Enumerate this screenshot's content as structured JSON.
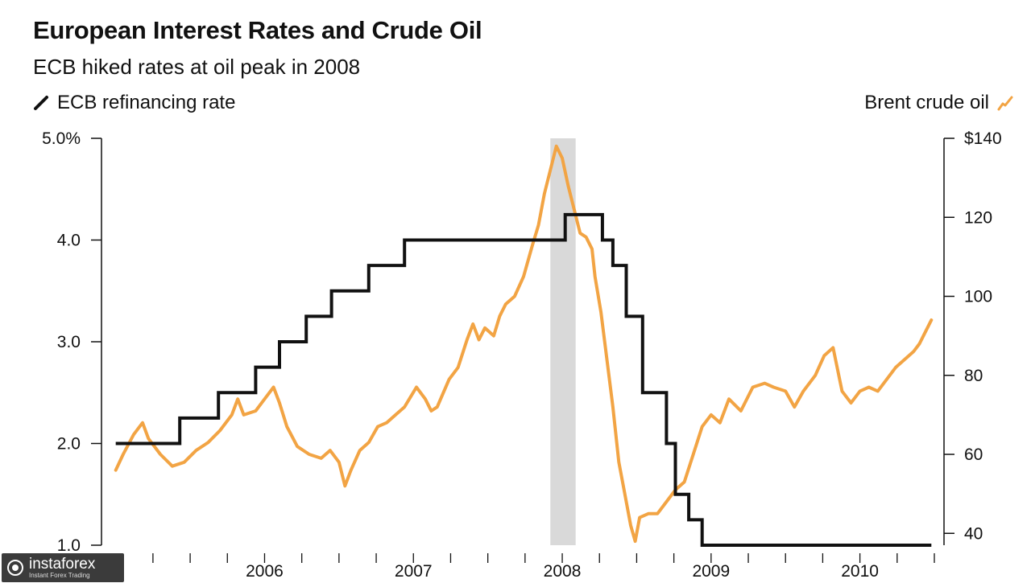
{
  "chart_data": {
    "type": "line",
    "title": "European Interest Rates and Crude Oil",
    "subtitle": "ECB hiked rates at oil peak in 2008",
    "legend": {
      "left_label": "ECB refinancing rate",
      "right_label": "Brent crude oil"
    },
    "colors": {
      "ecb": "#111111",
      "brent": "#f2a444",
      "shade": "#d9d9d9"
    },
    "left_axis": {
      "ticks": [
        "5.0%",
        "4.0",
        "3.0",
        "2.0",
        "1.0"
      ],
      "tick_values": [
        5.0,
        4.0,
        3.0,
        2.0,
        1.0
      ],
      "ylim": [
        1.0,
        5.0
      ]
    },
    "right_axis": {
      "ticks": [
        "$140",
        "120",
        "100",
        "80",
        "60",
        "40"
      ],
      "tick_values": [
        140,
        120,
        100,
        80,
        60,
        40
      ],
      "ylim": [
        37,
        140
      ]
    },
    "x_axis": {
      "year_labels": [
        "2006",
        "2007",
        "2008",
        "2009",
        "2010"
      ],
      "year_values": [
        2006,
        2007,
        2008,
        2009,
        2010
      ],
      "xlim": [
        2005.48,
        2011.0
      ]
    },
    "shaded_period": [
      2008.42,
      2008.59
    ],
    "series": [
      {
        "name": "ECB refinancing rate",
        "axis": "left",
        "step": true,
        "points": [
          [
            2005.5,
            2.0
          ],
          [
            2005.93,
            2.25
          ],
          [
            2006.19,
            2.5
          ],
          [
            2006.44,
            2.75
          ],
          [
            2006.6,
            3.0
          ],
          [
            2006.78,
            3.25
          ],
          [
            2006.95,
            3.5
          ],
          [
            2007.2,
            3.75
          ],
          [
            2007.44,
            4.0
          ],
          [
            2008.52,
            4.25
          ],
          [
            2008.77,
            4.0
          ],
          [
            2008.84,
            3.75
          ],
          [
            2008.93,
            3.25
          ],
          [
            2009.04,
            2.5
          ],
          [
            2009.2,
            2.0
          ],
          [
            2009.26,
            1.5
          ],
          [
            2009.35,
            1.25
          ],
          [
            2009.44,
            1.0
          ],
          [
            2010.98,
            1.0
          ]
        ]
      },
      {
        "name": "Brent crude oil",
        "axis": "right",
        "points": [
          [
            2005.5,
            56
          ],
          [
            2005.55,
            60
          ],
          [
            2005.62,
            65
          ],
          [
            2005.68,
            68
          ],
          [
            2005.72,
            64
          ],
          [
            2005.8,
            60
          ],
          [
            2005.88,
            57
          ],
          [
            2005.96,
            58
          ],
          [
            2006.04,
            61
          ],
          [
            2006.12,
            63
          ],
          [
            2006.2,
            66
          ],
          [
            2006.28,
            70
          ],
          [
            2006.32,
            74
          ],
          [
            2006.36,
            70
          ],
          [
            2006.44,
            71
          ],
          [
            2006.5,
            74
          ],
          [
            2006.56,
            77
          ],
          [
            2006.6,
            73
          ],
          [
            2006.65,
            67
          ],
          [
            2006.72,
            62
          ],
          [
            2006.8,
            60
          ],
          [
            2006.88,
            59
          ],
          [
            2006.94,
            61
          ],
          [
            2007.0,
            58
          ],
          [
            2007.04,
            52
          ],
          [
            2007.08,
            56
          ],
          [
            2007.14,
            61
          ],
          [
            2007.2,
            63
          ],
          [
            2007.26,
            67
          ],
          [
            2007.32,
            68
          ],
          [
            2007.38,
            70
          ],
          [
            2007.44,
            72
          ],
          [
            2007.52,
            77
          ],
          [
            2007.58,
            74
          ],
          [
            2007.62,
            71
          ],
          [
            2007.66,
            72
          ],
          [
            2007.74,
            79
          ],
          [
            2007.8,
            82
          ],
          [
            2007.86,
            89
          ],
          [
            2007.9,
            93
          ],
          [
            2007.94,
            89
          ],
          [
            2007.98,
            92
          ],
          [
            2008.04,
            90
          ],
          [
            2008.08,
            95
          ],
          [
            2008.12,
            98
          ],
          [
            2008.18,
            100
          ],
          [
            2008.24,
            105
          ],
          [
            2008.3,
            113
          ],
          [
            2008.34,
            118
          ],
          [
            2008.38,
            126
          ],
          [
            2008.42,
            132
          ],
          [
            2008.46,
            138
          ],
          [
            2008.5,
            135
          ],
          [
            2008.54,
            128
          ],
          [
            2008.58,
            122
          ],
          [
            2008.62,
            116
          ],
          [
            2008.66,
            115
          ],
          [
            2008.7,
            112
          ],
          [
            2008.72,
            105
          ],
          [
            2008.76,
            96
          ],
          [
            2008.8,
            84
          ],
          [
            2008.84,
            72
          ],
          [
            2008.88,
            58
          ],
          [
            2008.92,
            50
          ],
          [
            2008.96,
            42
          ],
          [
            2008.99,
            38
          ],
          [
            2009.02,
            44
          ],
          [
            2009.08,
            45
          ],
          [
            2009.14,
            45
          ],
          [
            2009.2,
            48
          ],
          [
            2009.26,
            51
          ],
          [
            2009.32,
            53
          ],
          [
            2009.38,
            60
          ],
          [
            2009.44,
            67
          ],
          [
            2009.5,
            70
          ],
          [
            2009.56,
            68
          ],
          [
            2009.62,
            74
          ],
          [
            2009.7,
            71
          ],
          [
            2009.78,
            77
          ],
          [
            2009.86,
            78
          ],
          [
            2009.92,
            77
          ],
          [
            2010.0,
            76
          ],
          [
            2010.06,
            72
          ],
          [
            2010.12,
            76
          ],
          [
            2010.2,
            80
          ],
          [
            2010.26,
            85
          ],
          [
            2010.32,
            87
          ],
          [
            2010.38,
            76
          ],
          [
            2010.44,
            73
          ],
          [
            2010.5,
            76
          ],
          [
            2010.56,
            77
          ],
          [
            2010.62,
            76
          ],
          [
            2010.68,
            79
          ],
          [
            2010.74,
            82
          ],
          [
            2010.8,
            84
          ],
          [
            2010.86,
            86
          ],
          [
            2010.9,
            88
          ],
          [
            2010.94,
            91
          ],
          [
            2010.98,
            94
          ]
        ]
      }
    ]
  },
  "watermark": {
    "brand": "instaforex",
    "tagline": "Instant Forex Trading"
  }
}
